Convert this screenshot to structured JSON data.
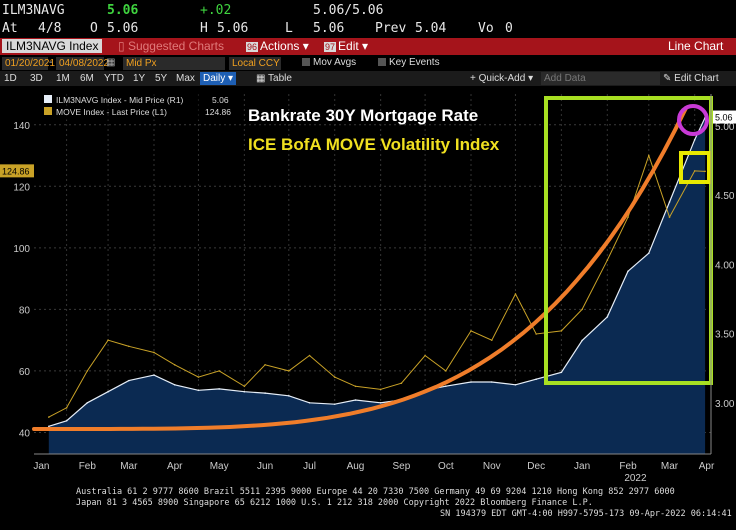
{
  "quote": {
    "ticker": "ILM3NAVG",
    "last": "5.06",
    "change": "+.02",
    "bid_ask": "5.06/5.06",
    "at_label": "At",
    "date": "4/8",
    "open_label": "O",
    "open": "5.06",
    "high_label": "H",
    "high": "5.06",
    "low_label": "L",
    "low": "5.06",
    "prev_label": "Prev",
    "prev": "5.04",
    "vol_label": "Vo",
    "vol": "0"
  },
  "toolbar": {
    "index_label": "ILM3NAVG Index",
    "suggested_label": "Suggested Charts",
    "actions_num": "96",
    "actions_label": "Actions",
    "edit_num": "97",
    "edit_label": "Edit",
    "chart_type": "Line Chart"
  },
  "controls": {
    "start_date": "01/20/2021",
    "end_date": "04/08/2022",
    "price_type": "Mid Px",
    "currency": "Local CCY",
    "mov_avgs": "Mov Avgs",
    "key_events": "Key Events"
  },
  "tabs": {
    "periods": [
      "1D",
      "3D",
      "1M",
      "6M",
      "YTD",
      "1Y",
      "5Y",
      "Max"
    ],
    "frequency": "Daily",
    "table": "Table",
    "quick_add": "+ Quick-Add",
    "add_data_placeholder": "Add Data",
    "edit_chart": "Edit Chart"
  },
  "colors": {
    "mortgage_fill": "#0b2a52",
    "mortgage_line": "#e6eef8",
    "move_line": "#c9a227",
    "curve": "#f07d2a",
    "box_green": "#a8e022",
    "box_yellow": "#e8e800",
    "circle": "#c83ad6",
    "annotation_1": "#ffffff",
    "annotation_2": "#f0e020"
  },
  "icons": [
    "gear-icon",
    "dropdown-arrow-icon",
    "calendar-icon",
    "edit-icon"
  ],
  "chart_data": {
    "type": "line",
    "annotation_1": "Bankrate 30Y Mortgage Rate",
    "annotation_2": "ICE BofA MOVE Volatility Index",
    "x_tick_labels": [
      "Jan",
      "Feb",
      "Mar",
      "Apr",
      "May",
      "Jun",
      "Jul",
      "Aug",
      "Sep",
      "Oct",
      "Nov",
      "Dec",
      "Jan",
      "Feb",
      "Mar",
      "Apr"
    ],
    "year_label": "2022",
    "left_axis": {
      "ticks": [
        40,
        60,
        80,
        100,
        120,
        140
      ],
      "range": [
        33,
        150
      ]
    },
    "right_axis": {
      "ticks": [
        "3.00",
        "3.50",
        "4.00",
        "4.50",
        "5.00"
      ],
      "range": [
        2.63,
        5.23
      ]
    },
    "legend": [
      {
        "label": "ILM3NAVG Index - Mid Price (R1)",
        "value": "5.06"
      },
      {
        "label": "MOVE Index - Last Price (L1)",
        "value": "124.86"
      }
    ],
    "last_value_left": "124.86",
    "last_value_right": "5.06",
    "series": [
      {
        "name": "ILM3NAVG Index - Mid Price (R1)",
        "axis": "right",
        "points": [
          [
            "2021-01-20",
            2.83
          ],
          [
            "2021-02-01",
            2.87
          ],
          [
            "2021-02-15",
            3.0
          ],
          [
            "2021-03-01",
            3.08
          ],
          [
            "2021-03-15",
            3.16
          ],
          [
            "2021-04-01",
            3.2
          ],
          [
            "2021-04-15",
            3.13
          ],
          [
            "2021-05-01",
            3.09
          ],
          [
            "2021-05-15",
            3.1
          ],
          [
            "2021-06-01",
            3.08
          ],
          [
            "2021-06-15",
            3.07
          ],
          [
            "2021-07-01",
            3.05
          ],
          [
            "2021-07-15",
            3.0
          ],
          [
            "2021-08-01",
            2.99
          ],
          [
            "2021-08-15",
            3.02
          ],
          [
            "2021-09-01",
            3.0
          ],
          [
            "2021-09-15",
            3.02
          ],
          [
            "2021-10-01",
            3.09
          ],
          [
            "2021-10-15",
            3.12
          ],
          [
            "2021-11-01",
            3.15
          ],
          [
            "2021-11-15",
            3.15
          ],
          [
            "2021-12-01",
            3.13
          ],
          [
            "2021-12-15",
            3.17
          ],
          [
            "2022-01-01",
            3.22
          ],
          [
            "2022-01-15",
            3.45
          ],
          [
            "2022-02-01",
            3.62
          ],
          [
            "2022-02-15",
            3.95
          ],
          [
            "2022-03-01",
            4.08
          ],
          [
            "2022-03-15",
            4.45
          ],
          [
            "2022-04-01",
            4.9
          ],
          [
            "2022-04-08",
            5.06
          ]
        ]
      },
      {
        "name": "MOVE Index - Last Price (L1)",
        "axis": "left",
        "points": [
          [
            "2021-01-20",
            45
          ],
          [
            "2021-02-01",
            48
          ],
          [
            "2021-02-15",
            60
          ],
          [
            "2021-03-01",
            70
          ],
          [
            "2021-03-15",
            68
          ],
          [
            "2021-04-01",
            66
          ],
          [
            "2021-04-15",
            62
          ],
          [
            "2021-05-01",
            58
          ],
          [
            "2021-05-15",
            60
          ],
          [
            "2021-06-01",
            55
          ],
          [
            "2021-06-15",
            62
          ],
          [
            "2021-07-01",
            60
          ],
          [
            "2021-07-15",
            65
          ],
          [
            "2021-08-01",
            58
          ],
          [
            "2021-08-15",
            55
          ],
          [
            "2021-09-01",
            54
          ],
          [
            "2021-09-15",
            56
          ],
          [
            "2021-10-01",
            65
          ],
          [
            "2021-10-15",
            60
          ],
          [
            "2021-11-01",
            73
          ],
          [
            "2021-11-15",
            70
          ],
          [
            "2021-12-01",
            85
          ],
          [
            "2021-12-15",
            72
          ],
          [
            "2022-01-01",
            73
          ],
          [
            "2022-01-15",
            80
          ],
          [
            "2022-02-01",
            96
          ],
          [
            "2022-02-15",
            110
          ],
          [
            "2022-03-01",
            130
          ],
          [
            "2022-03-15",
            110
          ],
          [
            "2022-04-01",
            125
          ],
          [
            "2022-04-08",
            124.86
          ]
        ]
      }
    ]
  }
}
